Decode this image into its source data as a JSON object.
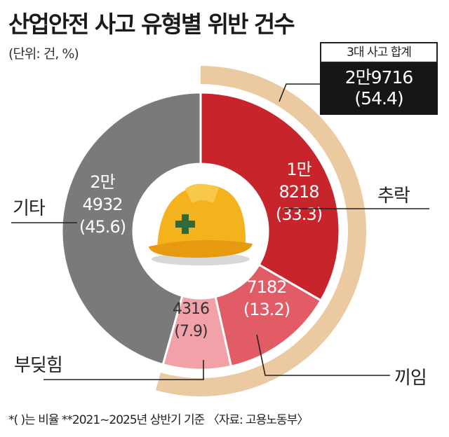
{
  "title": "산업안전 사고 유형별 위반 건수",
  "unit": "(단위: 건, %)",
  "total": {
    "label": "3대 사고 합계",
    "value": "2만9716",
    "pct": "(54.4)"
  },
  "chart_data": {
    "type": "pie",
    "title": "산업안전 사고 유형별 위반 건수",
    "unit": "(단위: 건, %)",
    "total_label": "3대 사고 합계",
    "total_value": 29716,
    "total_pct": 54.4,
    "slices": [
      {
        "name": "추락",
        "value": 18218,
        "pct": 33.3,
        "value_lines": [
          "1만",
          "8218"
        ],
        "pct_text": "(33.3)",
        "color": "#c8242c"
      },
      {
        "name": "끼임",
        "value": 7182,
        "pct": 13.2,
        "value_lines": [
          "7182"
        ],
        "pct_text": "(13.2)",
        "color": "#e25c67"
      },
      {
        "name": "부딪힘",
        "value": 4316,
        "pct": 7.9,
        "value_lines": [
          "4316"
        ],
        "pct_text": "(7.9)",
        "color": "#f2a1a9"
      },
      {
        "name": "기타",
        "value": 24932,
        "pct": 45.6,
        "value_lines": [
          "2만",
          "4932"
        ],
        "pct_text": "(45.6)",
        "color": "#7a7a7c"
      }
    ],
    "highlight_arc_color": "#ebc9a1"
  },
  "footnote": "*( )는 비율  **2021~2025년 상반기 기준  〈자료: 고용노동부〉"
}
